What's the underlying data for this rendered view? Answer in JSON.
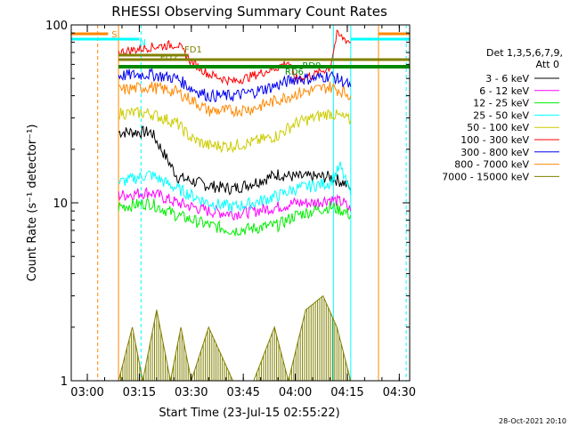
{
  "chart_data": {
    "type": "line",
    "title": "RHESSI Observing Summary Count Rates",
    "xlabel": "Start Time (23-Jul-15 02:55:22)",
    "ylabel": "Count Rate (s⁻¹ detector⁻¹)",
    "yscale": "log",
    "ylim": [
      1,
      100
    ],
    "yticks": [
      "1",
      "10",
      "100"
    ],
    "xlim": [
      "02:55:22",
      "04:33:00"
    ],
    "xticks": [
      "03:00",
      "03:15",
      "03:30",
      "03:45",
      "04:00",
      "04:15",
      "04:30"
    ],
    "grid": false,
    "legend_title": [
      "Det 1,3,5,6,7,9,",
      "Att 0"
    ],
    "legend_position": "right",
    "series": [
      {
        "name": "3 - 6 keV",
        "color": "#000000",
        "x": [
          "03:09",
          "03:18",
          "03:18.5",
          "03:26",
          "03:35",
          "03:42",
          "03:48",
          "03:55",
          "04:00",
          "04:05",
          "04:10",
          "04:14",
          "04:16"
        ],
        "y": [
          25,
          25,
          25,
          14,
          12.5,
          12,
          13,
          14.5,
          14,
          14,
          14,
          13,
          12
        ]
      },
      {
        "name": "6 - 12 keV",
        "color": "#ff00ff",
        "x": [
          "03:09",
          "03:18",
          "03:26",
          "03:35",
          "03:42",
          "03:48",
          "03:55",
          "04:00",
          "04:05",
          "04:10",
          "04:14",
          "04:16"
        ],
        "y": [
          11,
          11.5,
          10,
          9,
          8.7,
          9,
          9.5,
          10,
          10,
          10.5,
          10,
          9
        ]
      },
      {
        "name": "12 - 25 keV",
        "color": "#00ee00",
        "x": [
          "03:09",
          "03:18",
          "03:26",
          "03:35",
          "03:42",
          "03:48",
          "03:55",
          "04:00",
          "04:05",
          "04:10",
          "04:14",
          "04:16"
        ],
        "y": [
          9.5,
          10,
          8.5,
          7.5,
          7,
          7.2,
          7.5,
          8.5,
          9,
          9.5,
          9,
          8.5
        ]
      },
      {
        "name": "25 - 50 keV",
        "color": "#00ffff",
        "x": [
          "03:09",
          "03:18",
          "03:26",
          "03:35",
          "03:42",
          "03:48",
          "03:55",
          "04:00",
          "04:05",
          "04:10",
          "04:13",
          "04:16"
        ],
        "y": [
          13,
          14.5,
          12,
          10,
          9.5,
          10,
          11,
          12,
          12.5,
          13,
          16,
          11
        ]
      },
      {
        "name": "50 - 100 keV",
        "color": "#cccc00",
        "x": [
          "03:09",
          "03:18",
          "03:26",
          "03:30",
          "03:35",
          "03:42",
          "03:48",
          "03:55",
          "04:00",
          "04:05",
          "04:10",
          "04:14",
          "04:16"
        ],
        "y": [
          32,
          32,
          28,
          23,
          21,
          21,
          22,
          24,
          28,
          30,
          32,
          30,
          29
        ]
      },
      {
        "name": "100 - 300 keV",
        "color": "#ff0000",
        "x": [
          "03:09",
          "03:18",
          "03:26",
          "03:30",
          "03:35",
          "03:42",
          "03:48",
          "03:55",
          "03:58",
          "04:00",
          "04:05",
          "04:10",
          "04:12",
          "04:14",
          "04:16"
        ],
        "y": [
          70,
          75,
          78,
          62,
          53,
          48,
          52,
          58,
          62,
          50,
          52,
          58,
          88,
          84,
          80
        ]
      },
      {
        "name": "300 - 800 keV",
        "color": "#0000ee",
        "x": [
          "03:09",
          "03:18",
          "03:26",
          "03:30",
          "03:35",
          "03:42",
          "03:48",
          "03:55",
          "04:00",
          "04:05",
          "04:10",
          "04:14",
          "04:16"
        ],
        "y": [
          52,
          53,
          50,
          44,
          40,
          40,
          42,
          46,
          50,
          50,
          52,
          48,
          45
        ]
      },
      {
        "name": "800 - 7000 keV",
        "color": "#ff8800",
        "x": [
          "03:09",
          "03:18",
          "03:26",
          "03:30",
          "03:35",
          "03:42",
          "03:48",
          "03:55",
          "04:00",
          "04:05",
          "04:10",
          "04:14",
          "04:16"
        ],
        "y": [
          43,
          45,
          42,
          38,
          33,
          33,
          34,
          38,
          41,
          43,
          45,
          42,
          40
        ]
      },
      {
        "name": "7000 - 15000 keV",
        "color": "#808000",
        "x": [
          "03:09",
          "03:13",
          "03:16",
          "03:20",
          "03:24",
          "03:27",
          "03:30",
          "03:35",
          "03:42",
          "03:48",
          "03:54",
          "03:58",
          "04:03",
          "04:08",
          "04:12",
          "04:16"
        ],
        "y": [
          1,
          2,
          1,
          2.5,
          1,
          2,
          1,
          2,
          1,
          1,
          2,
          1,
          2.5,
          3,
          2,
          1
        ]
      }
    ],
    "annotations": [
      {
        "label": "S",
        "color": "#ff8800",
        "x": "03:07"
      },
      {
        "label": "N",
        "color": "#00ffff",
        "x": "03:15"
      },
      {
        "label": "FD1",
        "color": "#808000",
        "x": "03:28"
      },
      {
        "label": "FD2",
        "color": "#808000",
        "x": "03:21"
      },
      {
        "label": "RD6",
        "color": "#008800",
        "x": "03:57"
      },
      {
        "label": "RD0",
        "color": "#008800",
        "x": "04:02"
      }
    ],
    "footer_date": "28-Oct-2021 20:10"
  }
}
